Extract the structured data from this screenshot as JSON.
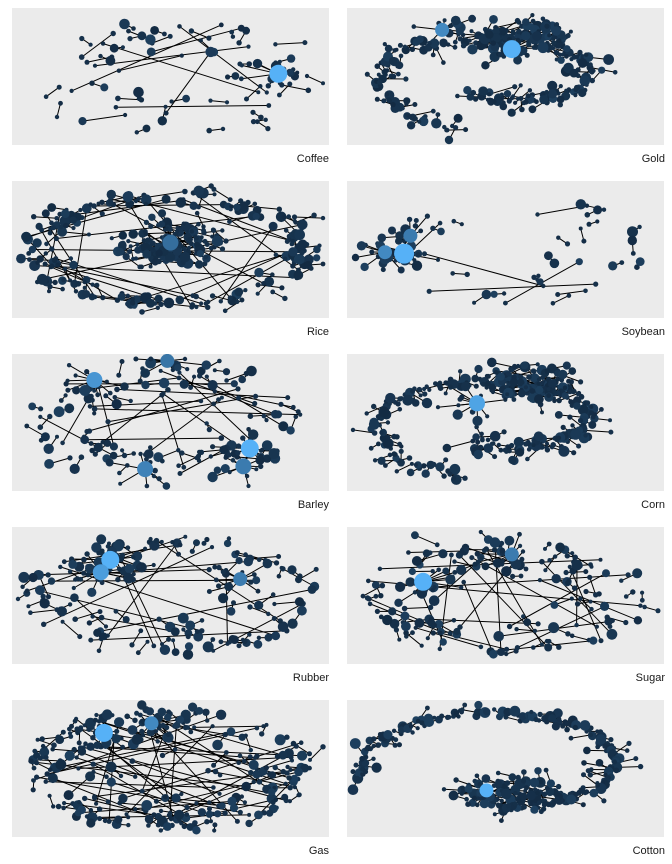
{
  "colors": {
    "panel_background": "#ebebeb",
    "edge": "#000000",
    "node_dark": "#132b43",
    "node_light": "#56b1f7"
  },
  "panels": [
    {
      "id": "coffee",
      "caption": "Coffee",
      "layout": "scattered",
      "node_count": 90,
      "highlights": [
        {
          "rx": 0.84,
          "ry": 0.48,
          "r": 9,
          "tone": 1.0
        }
      ]
    },
    {
      "id": "gold",
      "caption": "Gold",
      "layout": "spiral",
      "node_count": 360,
      "highlights": [
        {
          "rx": 0.52,
          "ry": 0.3,
          "r": 9,
          "tone": 1.0
        },
        {
          "rx": 0.3,
          "ry": 0.16,
          "r": 7,
          "tone": 0.7
        }
      ]
    },
    {
      "id": "rice",
      "caption": "Rice",
      "layout": "ring-center",
      "node_count": 380,
      "highlights": [
        {
          "rx": 0.5,
          "ry": 0.45,
          "r": 8,
          "tone": 0.5
        }
      ]
    },
    {
      "id": "soybean",
      "caption": "Soybean",
      "layout": "scattered",
      "node_count": 60,
      "highlights": [
        {
          "rx": 0.18,
          "ry": 0.53,
          "r": 10,
          "tone": 1.0
        },
        {
          "rx": 0.12,
          "ry": 0.52,
          "r": 7,
          "tone": 0.7
        },
        {
          "rx": 0.2,
          "ry": 0.4,
          "r": 7,
          "tone": 0.6
        }
      ]
    },
    {
      "id": "barley",
      "caption": "Barley",
      "layout": "scattered",
      "node_count": 140,
      "highlights": [
        {
          "rx": 0.75,
          "ry": 0.69,
          "r": 9,
          "tone": 1.0
        },
        {
          "rx": 0.26,
          "ry": 0.19,
          "r": 8,
          "tone": 0.8
        },
        {
          "rx": 0.73,
          "ry": 0.82,
          "r": 8,
          "tone": 0.6
        },
        {
          "rx": 0.42,
          "ry": 0.84,
          "r": 8,
          "tone": 0.65
        },
        {
          "rx": 0.49,
          "ry": 0.05,
          "r": 7,
          "tone": 0.55
        }
      ]
    },
    {
      "id": "corn",
      "caption": "Corn",
      "layout": "spiral",
      "node_count": 420,
      "highlights": [
        {
          "rx": 0.41,
          "ry": 0.36,
          "r": 8,
          "tone": 0.9
        }
      ]
    },
    {
      "id": "rubber",
      "caption": "Rubber",
      "layout": "ellipse",
      "node_count": 170,
      "highlights": [
        {
          "rx": 0.31,
          "ry": 0.24,
          "r": 9,
          "tone": 1.0
        },
        {
          "rx": 0.28,
          "ry": 0.33,
          "r": 8,
          "tone": 0.85
        },
        {
          "rx": 0.72,
          "ry": 0.38,
          "r": 7,
          "tone": 0.6
        }
      ]
    },
    {
      "id": "sugar",
      "caption": "Sugar",
      "layout": "ellipse",
      "node_count": 180,
      "highlights": [
        {
          "rx": 0.24,
          "ry": 0.4,
          "r": 9,
          "tone": 1.0
        },
        {
          "rx": 0.52,
          "ry": 0.2,
          "r": 7,
          "tone": 0.6
        }
      ]
    },
    {
      "id": "gas",
      "caption": "Gas",
      "layout": "ellipse",
      "node_count": 300,
      "highlights": [
        {
          "rx": 0.29,
          "ry": 0.24,
          "r": 9,
          "tone": 1.0
        },
        {
          "rx": 0.44,
          "ry": 0.17,
          "r": 7,
          "tone": 0.7
        }
      ]
    },
    {
      "id": "cotton",
      "caption": "Cotton",
      "layout": "spiral-open",
      "node_count": 330,
      "highlights": [
        {
          "rx": 0.44,
          "ry": 0.66,
          "r": 7,
          "tone": 1.0
        }
      ]
    }
  ]
}
